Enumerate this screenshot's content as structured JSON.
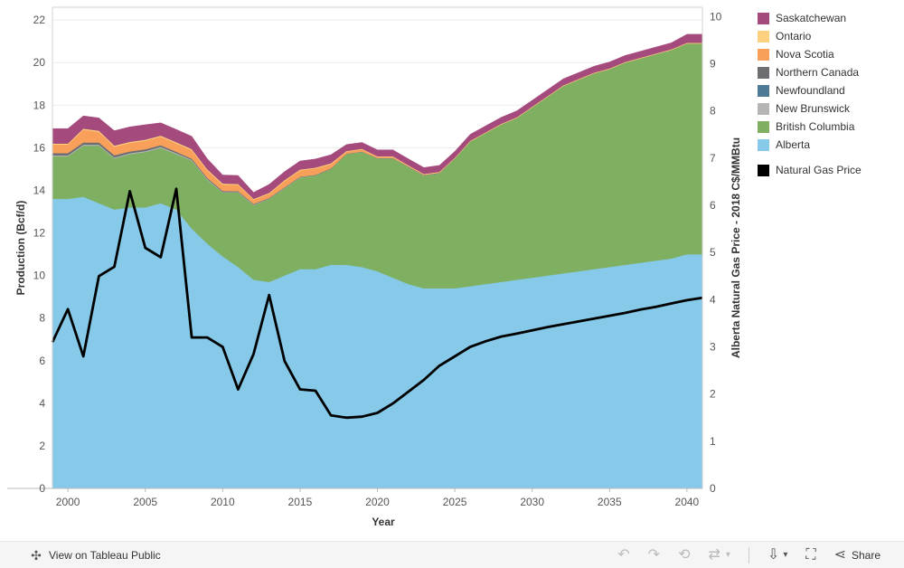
{
  "chart_data": {
    "type": "area",
    "xlabel": "Year",
    "ylabel_left": "Production (Bcf/d)",
    "ylabel_right": "Alberta Natural Gas Price - 2018 C$/MMBtu",
    "xlim": [
      1999,
      2041
    ],
    "ylim_left": [
      0,
      22.6
    ],
    "ylim_right": [
      0,
      10.2
    ],
    "x_ticks": [
      2000,
      2005,
      2010,
      2015,
      2020,
      2025,
      2030,
      2035,
      2040
    ],
    "y_ticks_left": [
      0,
      2,
      4,
      6,
      8,
      10,
      12,
      14,
      16,
      18,
      20,
      22
    ],
    "y_ticks_right": [
      0,
      1,
      2,
      3,
      4,
      5,
      6,
      7,
      8,
      9,
      10
    ],
    "x": [
      2000,
      2001,
      2002,
      2003,
      2004,
      2005,
      2006,
      2007,
      2008,
      2009,
      2010,
      2011,
      2012,
      2013,
      2014,
      2015,
      2016,
      2017,
      2018,
      2019,
      2020,
      2021,
      2022,
      2023,
      2024,
      2025,
      2026,
      2027,
      2028,
      2029,
      2030,
      2031,
      2032,
      2033,
      2034,
      2035,
      2036,
      2037,
      2038,
      2039,
      2040
    ],
    "series": [
      {
        "name": "Alberta",
        "color": "#86c9e8",
        "values": [
          13.6,
          13.7,
          13.4,
          13.1,
          13.2,
          13.2,
          13.4,
          13.1,
          12.2,
          11.5,
          10.9,
          10.4,
          9.8,
          9.7,
          10.0,
          10.3,
          10.3,
          10.5,
          10.5,
          10.4,
          10.2,
          9.9,
          9.6,
          9.4,
          9.4,
          9.4,
          9.5,
          9.6,
          9.7,
          9.8,
          9.9,
          10.0,
          10.1,
          10.2,
          10.3,
          10.4,
          10.5,
          10.6,
          10.7,
          10.8,
          11.0
        ]
      },
      {
        "name": "British Columbia",
        "color": "#7fb062",
        "values": [
          2.0,
          2.4,
          2.7,
          2.4,
          2.5,
          2.6,
          2.6,
          2.6,
          3.2,
          3.0,
          3.0,
          3.5,
          3.5,
          3.9,
          4.1,
          4.3,
          4.4,
          4.5,
          5.2,
          5.4,
          5.3,
          5.6,
          5.5,
          5.3,
          5.4,
          6.1,
          6.8,
          7.1,
          7.4,
          7.6,
          8.0,
          8.4,
          8.8,
          9.0,
          9.2,
          9.3,
          9.5,
          9.6,
          9.7,
          9.8,
          9.9
        ]
      },
      {
        "name": "New Brunswick",
        "color": "#b5b5b5",
        "values": [
          0.05,
          0.05,
          0.05,
          0.05,
          0.05,
          0.05,
          0.05,
          0.05,
          0.04,
          0.04,
          0.03,
          0.03,
          0.03,
          0.02,
          0.02,
          0.02,
          0.01,
          0.01,
          0.01,
          0.01,
          0.01,
          0.01,
          0.01,
          0.01,
          0.01,
          0,
          0,
          0,
          0,
          0,
          0,
          0,
          0,
          0,
          0,
          0,
          0,
          0,
          0,
          0,
          0
        ]
      },
      {
        "name": "Newfoundland",
        "color": "#4e7a96",
        "values": [
          0,
          0,
          0,
          0,
          0,
          0,
          0,
          0,
          0,
          0,
          0,
          0,
          0,
          0,
          0,
          0,
          0,
          0,
          0,
          0,
          0,
          0,
          0,
          0,
          0,
          0,
          0,
          0,
          0,
          0,
          0,
          0,
          0,
          0,
          0,
          0,
          0,
          0,
          0,
          0,
          0
        ]
      },
      {
        "name": "Northern Canada",
        "color": "#6d6e71",
        "values": [
          0.1,
          0.1,
          0.1,
          0.1,
          0.08,
          0.08,
          0.07,
          0.06,
          0.05,
          0.05,
          0.04,
          0.03,
          0.03,
          0.02,
          0.02,
          0.02,
          0.02,
          0.02,
          0.01,
          0.01,
          0.01,
          0.01,
          0.01,
          0.01,
          0.01,
          0,
          0,
          0,
          0,
          0,
          0,
          0,
          0,
          0,
          0,
          0,
          0,
          0,
          0,
          0,
          0
        ]
      },
      {
        "name": "Nova Scotia",
        "color": "#f8a05a",
        "values": [
          0.4,
          0.6,
          0.5,
          0.4,
          0.4,
          0.4,
          0.4,
          0.4,
          0.4,
          0.35,
          0.3,
          0.3,
          0.2,
          0.2,
          0.3,
          0.3,
          0.3,
          0.2,
          0.1,
          0.1,
          0.05,
          0.05,
          0.03,
          0.02,
          0.02,
          0,
          0,
          0,
          0,
          0,
          0,
          0,
          0,
          0,
          0,
          0,
          0,
          0,
          0,
          0,
          0
        ]
      },
      {
        "name": "Ontario",
        "color": "#fdd17f",
        "values": [
          0.05,
          0.05,
          0.05,
          0.05,
          0.05,
          0.05,
          0.05,
          0.05,
          0.05,
          0.05,
          0.05,
          0.04,
          0.04,
          0.04,
          0.04,
          0.04,
          0.04,
          0.04,
          0.03,
          0.03,
          0.03,
          0.03,
          0.03,
          0.03,
          0.03,
          0.03,
          0.03,
          0.03,
          0.03,
          0.03,
          0.03,
          0.03,
          0.03,
          0.03,
          0.03,
          0.03,
          0.03,
          0.03,
          0.03,
          0.03,
          0.03
        ]
      },
      {
        "name": "Saskatchewan",
        "color": "#a54a7d",
        "values": [
          0.7,
          0.6,
          0.6,
          0.7,
          0.7,
          0.7,
          0.6,
          0.6,
          0.6,
          0.5,
          0.4,
          0.4,
          0.3,
          0.4,
          0.4,
          0.4,
          0.4,
          0.4,
          0.3,
          0.3,
          0.3,
          0.3,
          0.3,
          0.3,
          0.3,
          0.3,
          0.3,
          0.3,
          0.3,
          0.3,
          0.3,
          0.3,
          0.3,
          0.3,
          0.3,
          0.3,
          0.3,
          0.3,
          0.3,
          0.3,
          0.4
        ]
      }
    ],
    "price_series": {
      "name": "Natural Gas Price",
      "color": "#000000",
      "axis": "right",
      "x": [
        1999,
        2000,
        2001,
        2002,
        2003,
        2004,
        2005,
        2006,
        2007,
        2008,
        2009,
        2010,
        2011,
        2012,
        2013,
        2014,
        2015,
        2016,
        2017,
        2018,
        2019,
        2020,
        2021,
        2022,
        2023,
        2024,
        2025,
        2026,
        2027,
        2028,
        2029,
        2030,
        2031,
        2032,
        2033,
        2034,
        2035,
        2036,
        2037,
        2038,
        2039,
        2040,
        2041
      ],
      "values": [
        3.1,
        3.8,
        2.8,
        4.5,
        4.7,
        6.3,
        5.1,
        4.9,
        6.35,
        3.2,
        3.2,
        3.0,
        2.1,
        2.85,
        4.1,
        2.7,
        2.1,
        2.07,
        1.55,
        1.5,
        1.52,
        1.6,
        1.8,
        2.05,
        2.3,
        2.6,
        2.8,
        3.0,
        3.12,
        3.22,
        3.28,
        3.35,
        3.42,
        3.48,
        3.54,
        3.6,
        3.66,
        3.72,
        3.79,
        3.85,
        3.92,
        3.99,
        4.04
      ]
    },
    "legend": {
      "placement": "right",
      "order": [
        "Saskatchewan",
        "Ontario",
        "Nova Scotia",
        "Northern Canada",
        "Newfoundland",
        "New Brunswick",
        "British Columbia",
        "Alberta"
      ],
      "price_label": "Natural Gas Price"
    }
  },
  "footer": {
    "view_label": "View on Tableau Public",
    "share_label": "Share"
  }
}
